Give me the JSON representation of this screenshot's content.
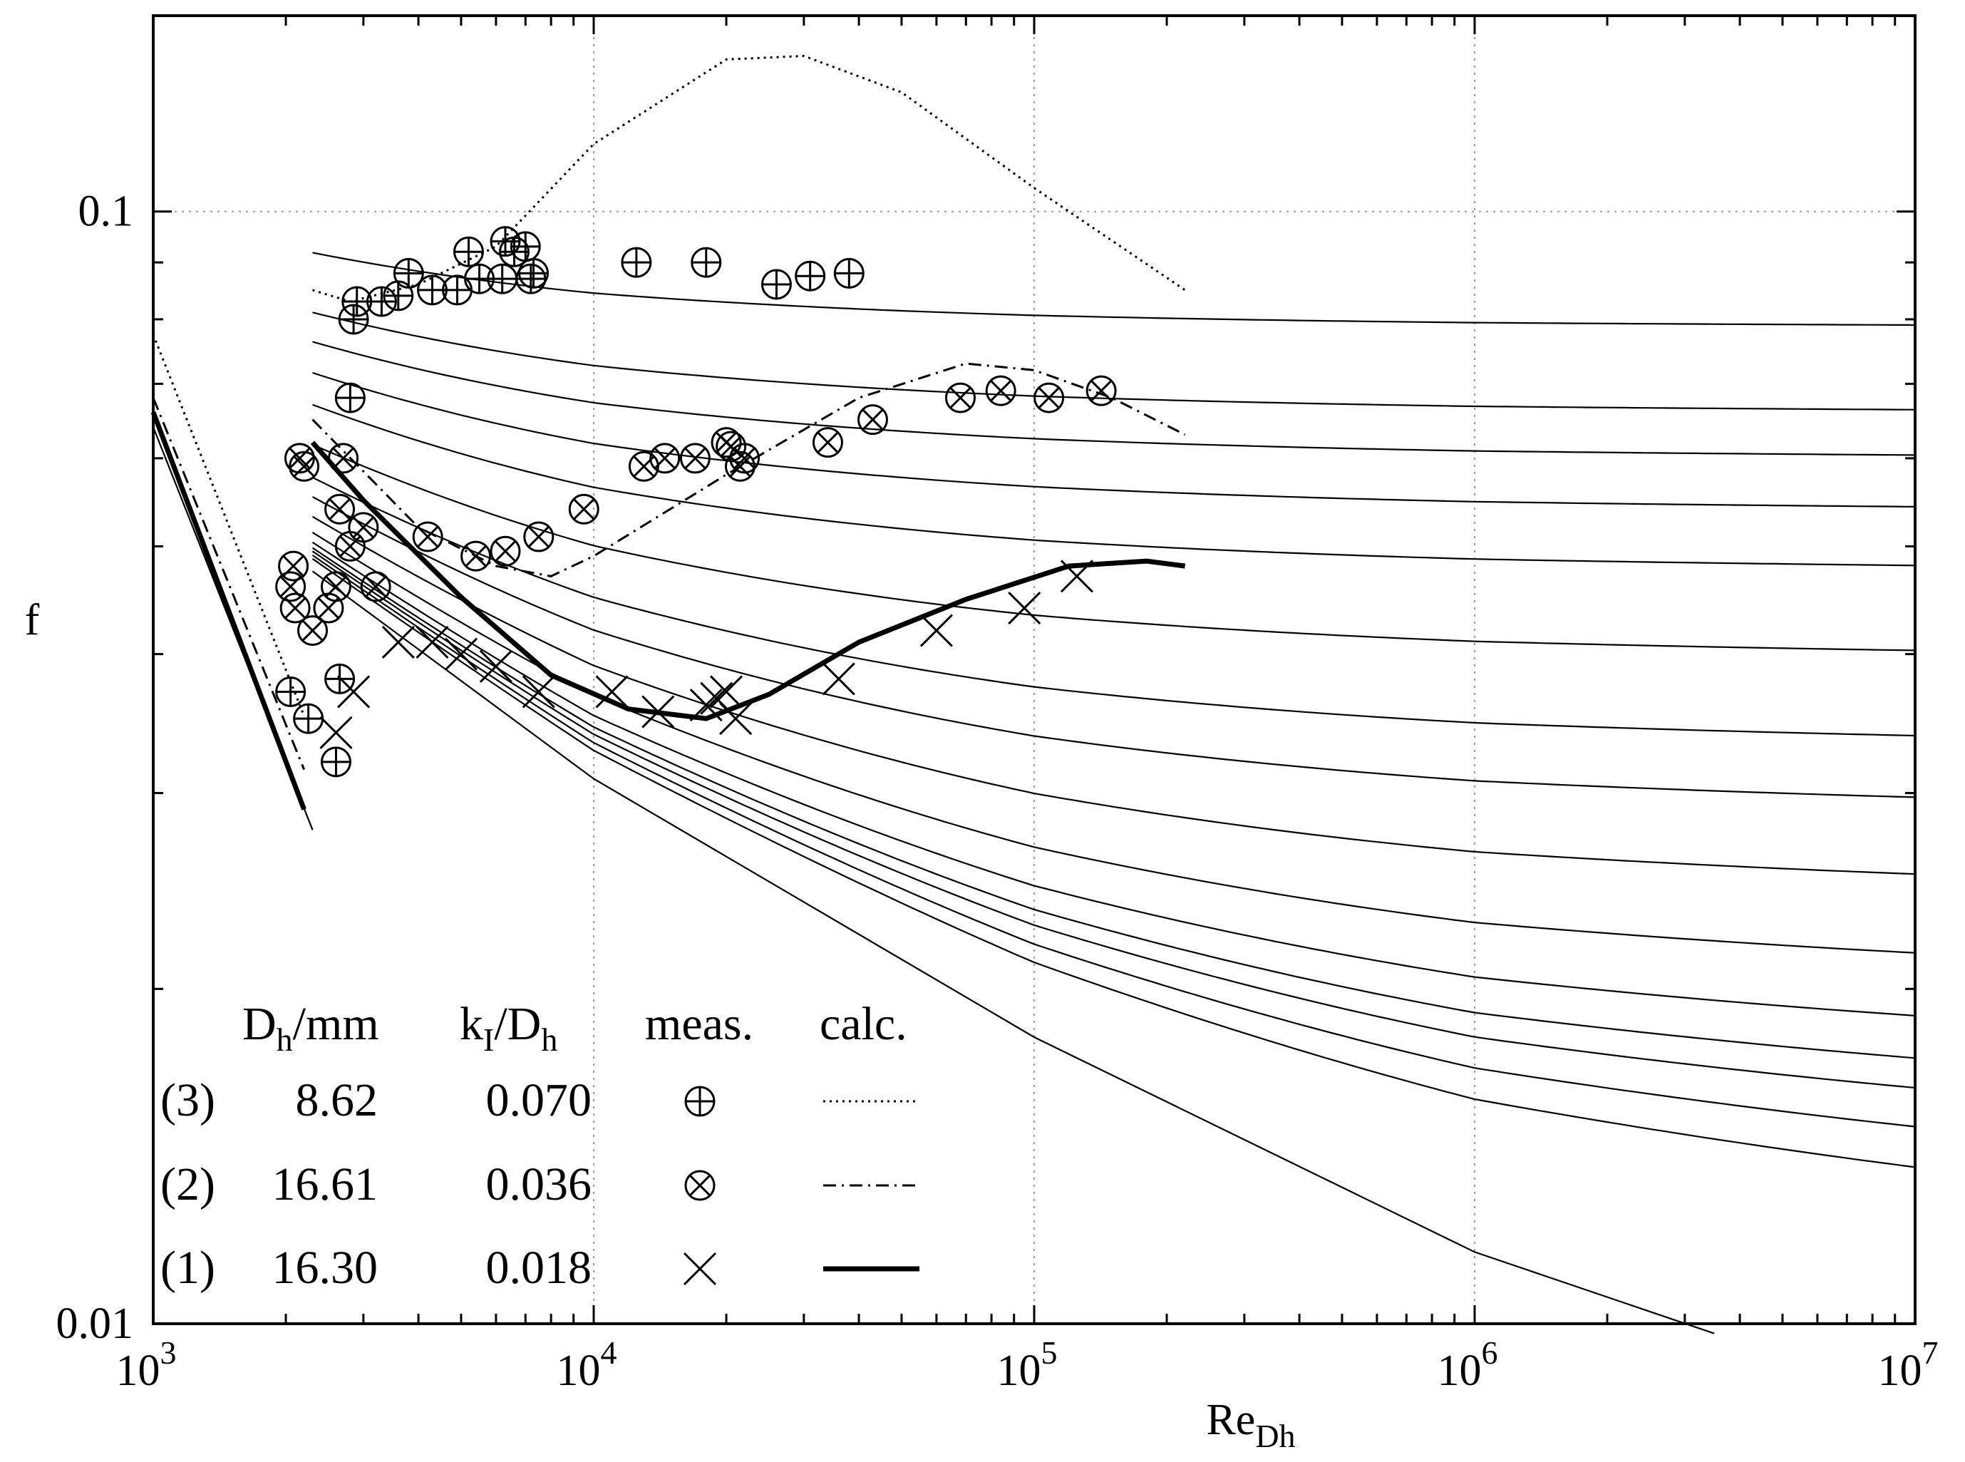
{
  "chart_data": {
    "type": "line",
    "xscale": "log",
    "yscale": "log",
    "xlim": [
      1000,
      10000000
    ],
    "ylim": [
      0.01,
      0.15
    ],
    "xlabel": "Re",
    "xlabel_sub": "Dh",
    "ylabel": "f",
    "grid": "dotted at decades",
    "x_ticks": [
      {
        "value": 1000,
        "base": "10",
        "exp": "3"
      },
      {
        "value": 10000,
        "base": "10",
        "exp": "4"
      },
      {
        "value": 100000,
        "base": "10",
        "exp": "5"
      },
      {
        "value": 1000000,
        "base": "10",
        "exp": "6"
      },
      {
        "value": 10000000,
        "base": "10",
        "exp": "7"
      }
    ],
    "y_ticks": [
      {
        "value": 0.01,
        "label": "0.01"
      },
      {
        "value": 0.1,
        "label": "0.1"
      }
    ],
    "y_minor_ticks": [
      0.02,
      0.03,
      0.04,
      0.05,
      0.06,
      0.07,
      0.08,
      0.09
    ],
    "background_curves": {
      "description": "thin reference friction-factor curves (Colebrook family) approaching laminar-turbulent smooth line",
      "start_re": 2300,
      "end_re": 10000000,
      "asymptotes": [
        0.0786,
        0.0658,
        0.0598,
        0.0536,
        0.0473,
        0.0394,
        0.0327,
        0.0285,
        0.0239,
        0.0198,
        0.0169,
        0.0151,
        0.0139,
        0.0124,
        0.0109
      ],
      "smooth_curve": [
        [
          2300,
          0.0475
        ],
        [
          10000,
          0.0309
        ],
        [
          100000,
          0.0181
        ],
        [
          1000000,
          0.0116
        ],
        [
          3500000,
          0.0098
        ]
      ],
      "laminar_line": {
        "re": [
          1000,
          2300
        ],
        "f": [
          0.064,
          0.0278
        ]
      }
    },
    "legend": {
      "headers": {
        "dh": "D",
        "dh_sub": "h",
        "dh_unit": "/mm",
        "k": "k",
        "k_sub": "I",
        "k_slash": "/D",
        "k_sub2": "h",
        "meas": "meas.",
        "calc": "calc."
      },
      "rows": [
        {
          "id": "(3)",
          "dh": "8.62",
          "k": "0.070",
          "marker": "circle-plus",
          "line": "dotted"
        },
        {
          "id": "(2)",
          "dh": "16.61",
          "k": "0.036",
          "marker": "circle-cross",
          "line": "dash-dot"
        },
        {
          "id": "(1)",
          "dh": "16.30",
          "k": "0.018",
          "marker": "cross",
          "line": "thick-solid"
        }
      ]
    },
    "series": [
      {
        "name": "(3) calc.",
        "style": "dotted",
        "laminar": [
          [
            1000,
            0.0775
          ],
          [
            2200,
            0.0352
          ]
        ],
        "points": [
          [
            2300,
            0.085
          ],
          [
            2800,
            0.083
          ],
          [
            4000,
            0.086
          ],
          [
            6000,
            0.093
          ],
          [
            10000,
            0.115
          ],
          [
            20000,
            0.137
          ],
          [
            30000,
            0.138
          ],
          [
            50000,
            0.128
          ],
          [
            100000,
            0.105
          ],
          [
            220000,
            0.085
          ]
        ]
      },
      {
        "name": "(2) calc.",
        "style": "dash-dot",
        "laminar": [
          [
            1000,
            0.068
          ],
          [
            2200,
            0.0315
          ]
        ],
        "points": [
          [
            2300,
            0.065
          ],
          [
            4000,
            0.052
          ],
          [
            6000,
            0.048
          ],
          [
            8000,
            0.047
          ],
          [
            10000,
            0.049
          ],
          [
            20000,
            0.058
          ],
          [
            40000,
            0.068
          ],
          [
            70000,
            0.073
          ],
          [
            100000,
            0.072
          ],
          [
            150000,
            0.068
          ],
          [
            220000,
            0.063
          ]
        ]
      },
      {
        "name": "(1) calc.",
        "style": "thick-solid",
        "laminar": [
          [
            1000,
            0.066
          ],
          [
            2200,
            0.029
          ]
        ],
        "points": [
          [
            2300,
            0.062
          ],
          [
            3000,
            0.055
          ],
          [
            5000,
            0.045
          ],
          [
            8000,
            0.0383
          ],
          [
            12000,
            0.0357
          ],
          [
            18000,
            0.035
          ],
          [
            25000,
            0.0368
          ],
          [
            40000,
            0.041
          ],
          [
            70000,
            0.0448
          ],
          [
            120000,
            0.048
          ],
          [
            180000,
            0.0485
          ],
          [
            220000,
            0.048
          ]
        ]
      },
      {
        "name": "(3) meas.",
        "marker": "circle-plus",
        "points": [
          [
            2050,
            0.037
          ],
          [
            2250,
            0.035
          ],
          [
            2600,
            0.032
          ],
          [
            2650,
            0.038
          ],
          [
            2800,
            0.068
          ],
          [
            2850,
            0.08
          ],
          [
            2900,
            0.083
          ],
          [
            3300,
            0.083
          ],
          [
            3600,
            0.084
          ],
          [
            3800,
            0.088
          ],
          [
            4300,
            0.085
          ],
          [
            4900,
            0.085
          ],
          [
            5200,
            0.092
          ],
          [
            5500,
            0.087
          ],
          [
            6200,
            0.087
          ],
          [
            6300,
            0.094
          ],
          [
            6600,
            0.092
          ],
          [
            7000,
            0.093
          ],
          [
            7200,
            0.087
          ],
          [
            7300,
            0.088
          ],
          [
            12500,
            0.09
          ],
          [
            18000,
            0.09
          ],
          [
            26000,
            0.086
          ],
          [
            31000,
            0.0875
          ],
          [
            38000,
            0.088
          ]
        ]
      },
      {
        "name": "(2) meas.",
        "marker": "circle-cross",
        "points": [
          [
            2050,
            0.046
          ],
          [
            2080,
            0.048
          ],
          [
            2100,
            0.044
          ],
          [
            2150,
            0.06
          ],
          [
            2200,
            0.059
          ],
          [
            2300,
            0.042
          ],
          [
            2500,
            0.044
          ],
          [
            2600,
            0.046
          ],
          [
            2650,
            0.054
          ],
          [
            2700,
            0.06
          ],
          [
            2800,
            0.05
          ],
          [
            3000,
            0.052
          ],
          [
            3200,
            0.046
          ],
          [
            4200,
            0.051
          ],
          [
            5400,
            0.049
          ],
          [
            6300,
            0.0495
          ],
          [
            7500,
            0.051
          ],
          [
            9500,
            0.054
          ],
          [
            13000,
            0.059
          ],
          [
            14500,
            0.06
          ],
          [
            17000,
            0.06
          ],
          [
            20000,
            0.062
          ],
          [
            20500,
            0.0615
          ],
          [
            21500,
            0.059
          ],
          [
            22000,
            0.06
          ],
          [
            34000,
            0.062
          ],
          [
            43000,
            0.065
          ],
          [
            68000,
            0.068
          ],
          [
            84000,
            0.069
          ],
          [
            108000,
            0.068
          ],
          [
            142000,
            0.069
          ]
        ]
      },
      {
        "name": "(1) meas.",
        "marker": "cross",
        "points": [
          [
            2600,
            0.034
          ],
          [
            2850,
            0.037
          ],
          [
            3600,
            0.041
          ],
          [
            4300,
            0.041
          ],
          [
            5000,
            0.04
          ],
          [
            6000,
            0.039
          ],
          [
            7500,
            0.037
          ],
          [
            11000,
            0.037
          ],
          [
            14000,
            0.0355
          ],
          [
            18000,
            0.036
          ],
          [
            19000,
            0.0365
          ],
          [
            20000,
            0.037
          ],
          [
            21000,
            0.035
          ],
          [
            36000,
            0.038
          ],
          [
            60000,
            0.042
          ],
          [
            95000,
            0.044
          ],
          [
            125000,
            0.047
          ]
        ]
      }
    ]
  }
}
